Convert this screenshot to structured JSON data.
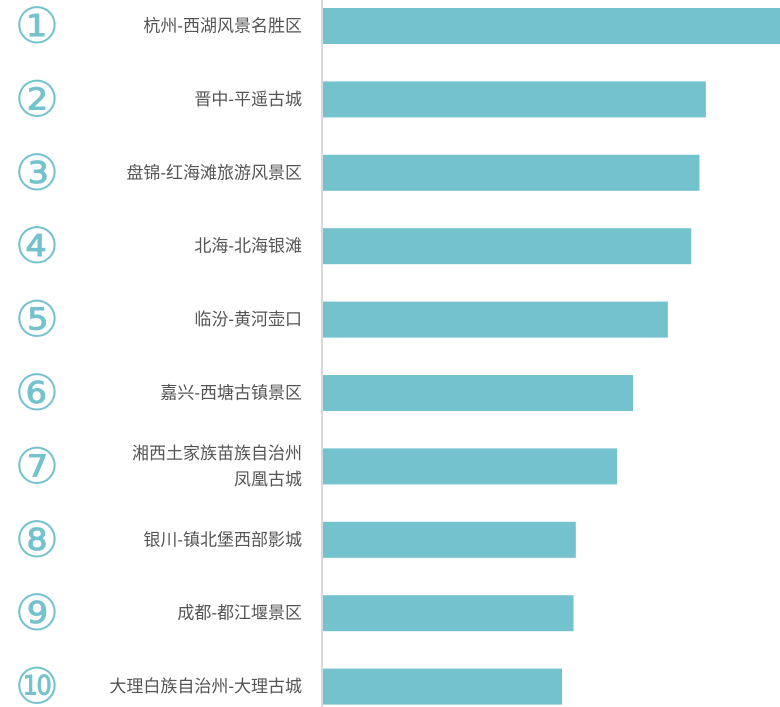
{
  "chart_data": {
    "type": "bar",
    "orientation": "horizontal",
    "title": "",
    "xlabel": "",
    "ylabel": "",
    "grid": false,
    "legend": "none",
    "colors": {
      "bar": "#74c2cd",
      "rank": "#74c2cd",
      "label": "#555555",
      "axis": "#d9d9d9"
    },
    "categories": [
      "杭州-西湖风景名胜区",
      "晋中-平遥古城",
      "盘锦-红海滩旅游风景区",
      "北海-北海银滩",
      "临汾-黄河壶口",
      "嘉兴-西塘古镇景区",
      "湘西土家族苗族自治州凤凰古城",
      "银川-镇北堡西部影城",
      "成都-都江堰景区",
      "大理白族自治州-大理古城"
    ],
    "label_lines": [
      [
        "杭州-西湖风景名胜区"
      ],
      [
        "晋中-平遥古城"
      ],
      [
        "盘锦-红海滩旅游风景区"
      ],
      [
        "北海-北海银滩"
      ],
      [
        "临汾-黄河壶口"
      ],
      [
        "嘉兴-西塘古镇景区"
      ],
      [
        "湘西土家族苗族自治州",
        "凤凰古城"
      ],
      [
        "银川-镇北堡西部影城"
      ],
      [
        "成都-都江堰景区"
      ],
      [
        "大理白族自治州-大理古城"
      ]
    ],
    "ranks": [
      "①",
      "②",
      "③",
      "④",
      "⑤",
      "⑥",
      "⑦",
      "⑧",
      "⑨",
      "⑩"
    ],
    "values": [
      100,
      83.6,
      82.2,
      80.4,
      75.3,
      67.7,
      64.2,
      55.2,
      54.7,
      52.2
    ],
    "xlim": [
      0,
      100
    ]
  }
}
